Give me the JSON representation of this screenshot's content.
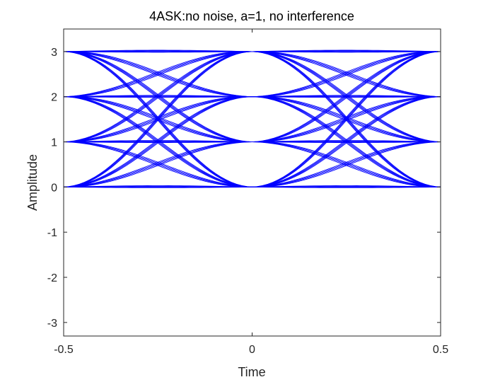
{
  "chart_data": {
    "type": "line",
    "plot_kind": "eye diagram",
    "title": "4ASK:no noise, a=1, no interference",
    "xlabel": "Time",
    "ylabel": "Amplitude",
    "xlim": [
      -0.5,
      0.5
    ],
    "ylim": [
      -3.3,
      3.5
    ],
    "x_ticks": [
      -0.5,
      0,
      0.5
    ],
    "x_tick_labels": [
      "-0.5",
      "0",
      "0.5"
    ],
    "y_ticks": [
      -3,
      -2,
      -1,
      0,
      1,
      2,
      3
    ],
    "y_tick_labels": [
      "-3",
      "-2",
      "-1",
      "0",
      "1",
      "2",
      "3"
    ],
    "grid": false,
    "legend": "none",
    "line_color": "#0000ff",
    "symbol_levels": [
      0,
      1,
      2,
      3
    ],
    "symbol_times": [
      -0.5,
      0,
      0.5
    ]
  },
  "colors": {
    "background": "#ffffff",
    "axes": "#262626",
    "trace": "#0000ff"
  }
}
